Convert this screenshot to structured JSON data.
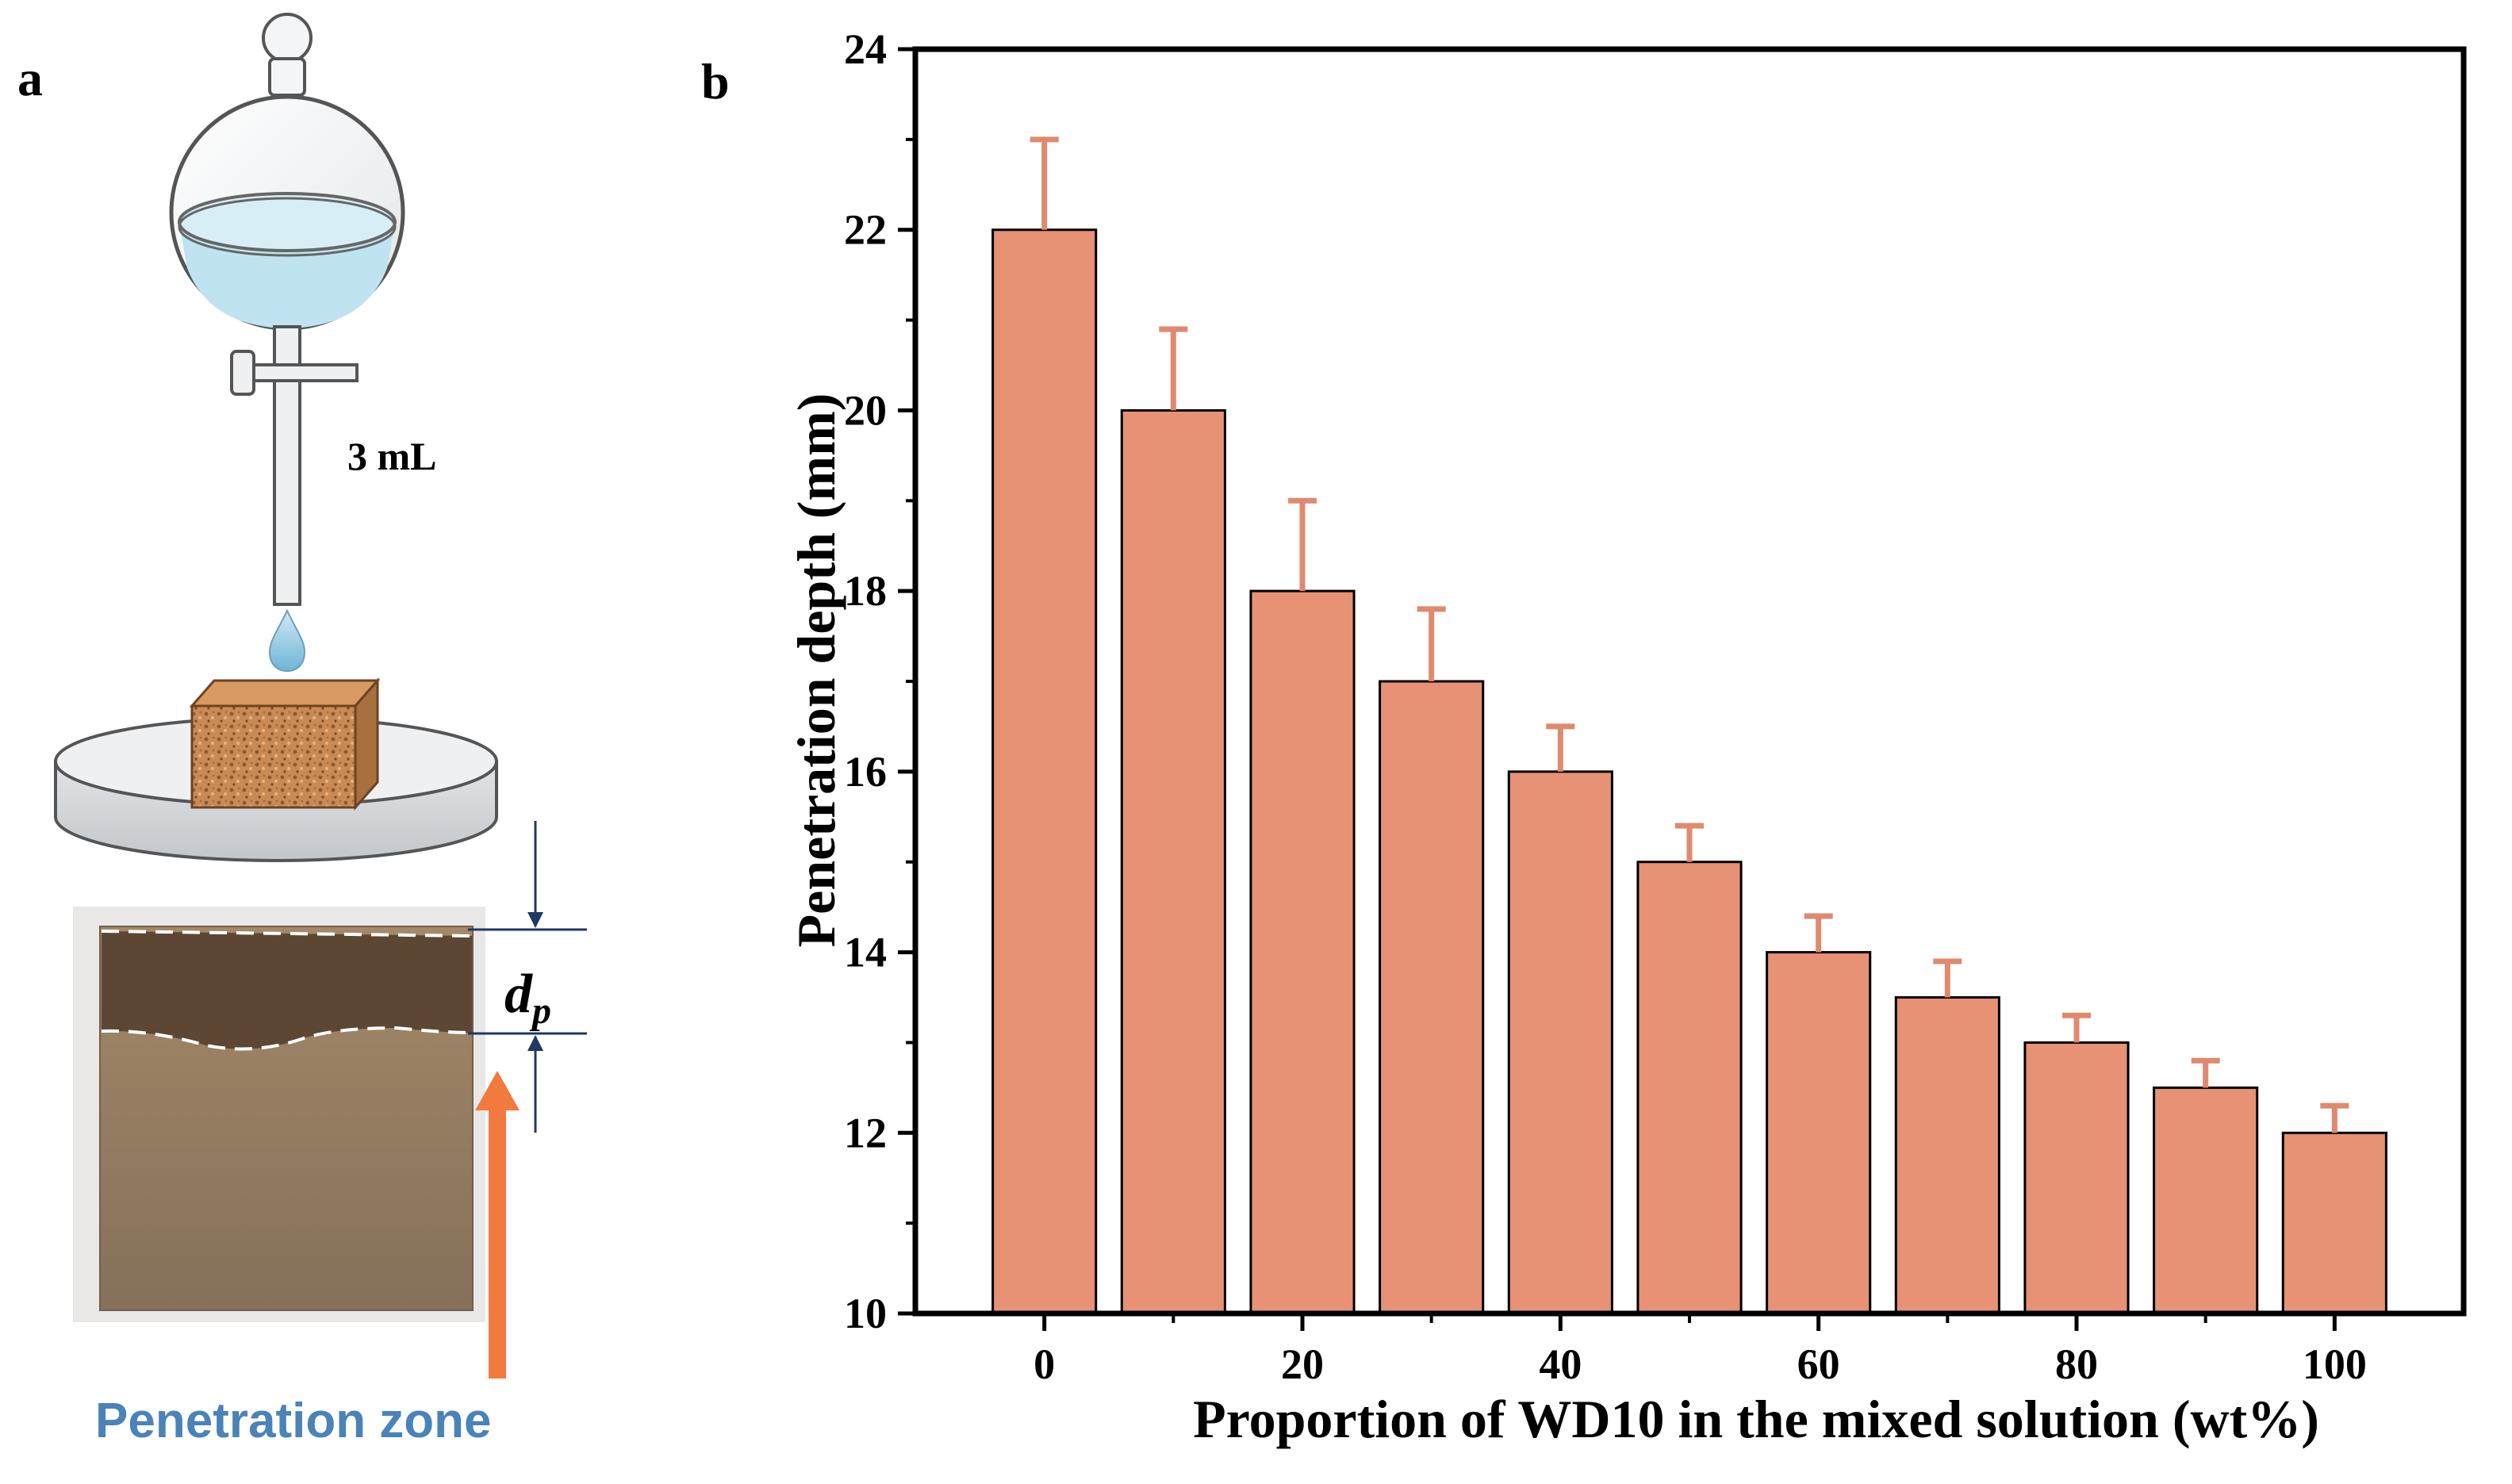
{
  "panel_a": {
    "letter": "a",
    "volume_label": "3 mL",
    "depth_symbol": "d",
    "depth_subscript": "p",
    "zone_label": "Penetration zone",
    "colors": {
      "liquid": "#bfe3f0",
      "block": "#c98a55",
      "specimen_top": "#5e4634",
      "specimen_bottom": "#b49a7c",
      "arrow": "#f37a3f",
      "marker": "#1f3864"
    },
    "icons": [
      "separatory-funnel-icon",
      "water-drop-icon",
      "porous-block-icon",
      "petri-dish-icon"
    ]
  },
  "chart_data": {
    "type": "bar",
    "panel_letter": "b",
    "x": [
      0,
      10,
      20,
      30,
      40,
      50,
      60,
      70,
      80,
      90,
      100
    ],
    "values": [
      22.0,
      20.0,
      18.0,
      17.0,
      16.0,
      15.0,
      14.0,
      13.5,
      13.0,
      12.5,
      12.0
    ],
    "errors": [
      1.0,
      0.9,
      1.0,
      0.8,
      0.5,
      0.4,
      0.4,
      0.4,
      0.3,
      0.3,
      0.3
    ],
    "xticks": [
      0,
      20,
      40,
      60,
      80,
      100
    ],
    "yticks": [
      10,
      12,
      14,
      16,
      18,
      20,
      22,
      24
    ],
    "xlim": [
      -10,
      110
    ],
    "ylim": [
      10,
      24
    ],
    "xlabel": "Proportion of WD10 in the mixed solution (wt%)",
    "ylabel": "Penetration depth (mm)",
    "bar_color": "#e79175",
    "error_color": "#df8a6e",
    "grid": false,
    "legend": "none"
  }
}
